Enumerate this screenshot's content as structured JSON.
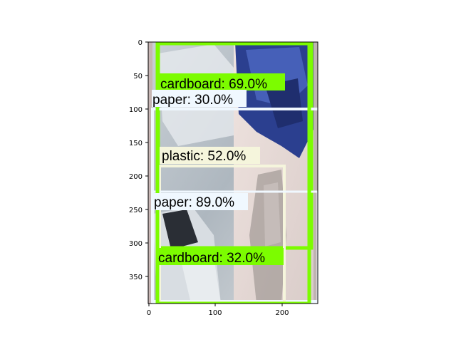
{
  "figure": {
    "x_ticks": [
      "0",
      "100",
      "200"
    ],
    "y_ticks": [
      "0",
      "50",
      "100",
      "150",
      "200",
      "250",
      "300",
      "350"
    ]
  },
  "detections": [
    {
      "label": "cardboard: 69.0%",
      "color": "#7cfc00"
    },
    {
      "label": "paper: 30.0%",
      "color": "#f0f8ff"
    },
    {
      "label": "plastic: 52.0%",
      "color": "#f5f5dc"
    },
    {
      "label": "paper: 89.0%",
      "color": "#f0f8ff"
    },
    {
      "label": "cardboard: 32.0%",
      "color": "#7cfc00"
    }
  ],
  "scene": {
    "description_colors": {
      "left_panel": "#b9c1c8",
      "right_panel": "#e6d7d3",
      "bag_blue": "#2b3f8f"
    }
  }
}
